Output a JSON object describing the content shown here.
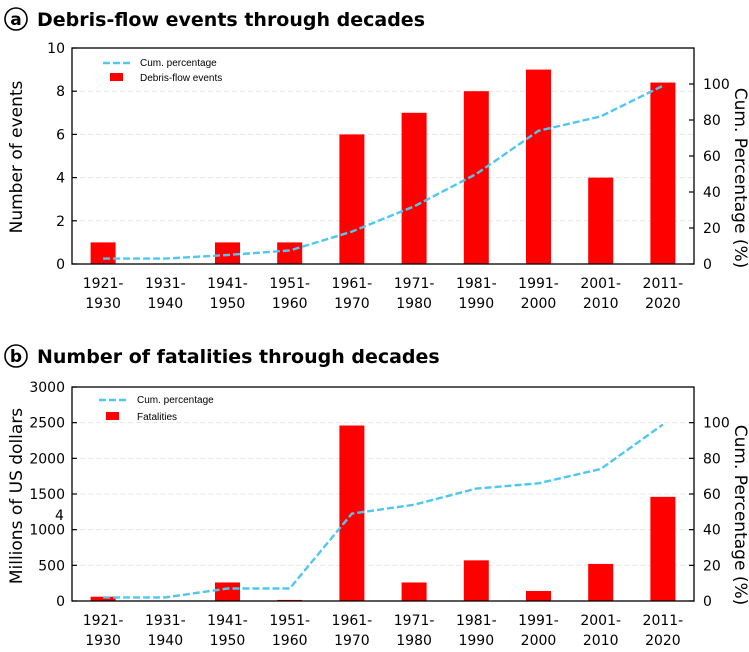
{
  "colors": {
    "bar": "#ff0000",
    "line": "#4dc8f0",
    "grid": "#e6e6e6",
    "axis": "#000000"
  },
  "chart_data": [
    {
      "type": "bar",
      "panel_letter": "a",
      "title": "Debris-flow events through decades",
      "categories": [
        [
          "1921-",
          "1930"
        ],
        [
          "1931-",
          "1940"
        ],
        [
          "1941-",
          "1950"
        ],
        [
          "1951-",
          "1960"
        ],
        [
          "1961-",
          "1970"
        ],
        [
          "1971-",
          "1980"
        ],
        [
          "1981-",
          "1990"
        ],
        [
          "1991-",
          "2000"
        ],
        [
          "2001-",
          "2010"
        ],
        [
          "2011-",
          "2020"
        ]
      ],
      "values": [
        1,
        0,
        1,
        1,
        6,
        7,
        8,
        9,
        4,
        8.4
      ],
      "cum_percentage": [
        3,
        3,
        5,
        7.5,
        18,
        32,
        50,
        74,
        82,
        99
      ],
      "series_names": {
        "bars": "Debris-flow events",
        "line": "Cum. percentage"
      },
      "ylabel": "Number of events",
      "y2label": "Cum. Percentage (%)",
      "ylim": [
        0,
        10
      ],
      "yticks": [
        "0",
        "2",
        "4",
        "6",
        "8",
        "10"
      ],
      "y2lim": [
        0,
        120
      ],
      "y2ticks": [
        "0",
        "20",
        "40",
        "60",
        "80",
        "100"
      ],
      "grid": true,
      "legend_position": "top-left"
    },
    {
      "type": "bar",
      "panel_letter": "b",
      "title": "Number of fatalities through decades",
      "categories": [
        [
          "1921-",
          "1930"
        ],
        [
          "1931-",
          "1940"
        ],
        [
          "1941-",
          "1950"
        ],
        [
          "1951-",
          "1960"
        ],
        [
          "1961-",
          "1970"
        ],
        [
          "1971-",
          "1980"
        ],
        [
          "1981-",
          "1990"
        ],
        [
          "1991-",
          "2000"
        ],
        [
          "2001-",
          "2010"
        ],
        [
          "2011-",
          "2020"
        ]
      ],
      "values": [
        60,
        0,
        260,
        15,
        2460,
        260,
        570,
        140,
        520,
        1460
      ],
      "cum_percentage": [
        2,
        2,
        7,
        7,
        49,
        54,
        63,
        66,
        74,
        99
      ],
      "series_names": {
        "bars": "Fatalities",
        "line": "Cum. percentage"
      },
      "ylabel": "Millions of US dollars",
      "y2label": "Cum. Percentage (%)",
      "ylim": [
        0,
        3000
      ],
      "yticks": [
        "0",
        "500",
        "1000",
        "1500",
        "2000",
        "2500",
        "3000"
      ],
      "y2lim": [
        0,
        120
      ],
      "y2ticks": [
        "0",
        "20",
        "40",
        "60",
        "80",
        "100"
      ],
      "grid": true,
      "legend_position": "top-left",
      "stray_label": "4"
    }
  ]
}
